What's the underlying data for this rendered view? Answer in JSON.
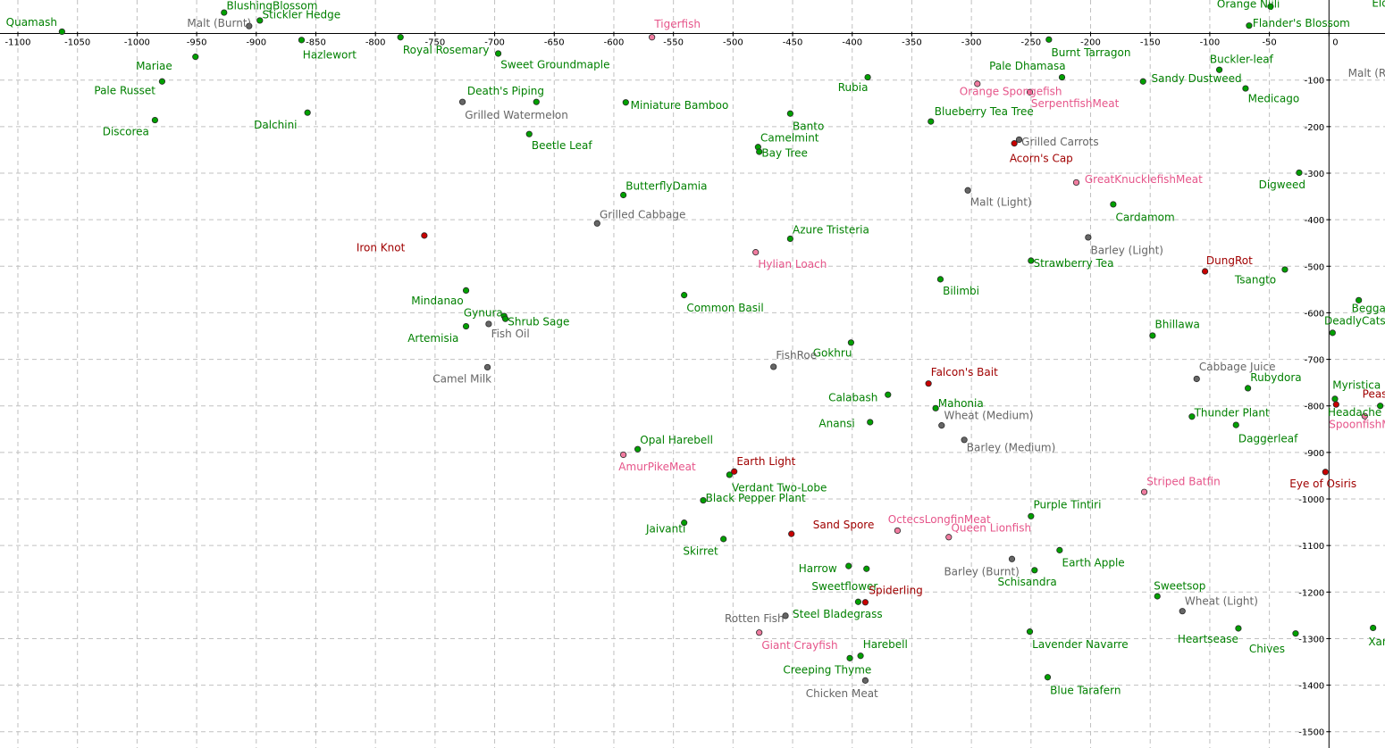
{
  "colors": {
    "plant": "#008000",
    "plant_dot": "#00a000",
    "grey": "#666666",
    "grey_dot": "#666666",
    "fish": "#e6558a",
    "fish_dot": "#f07ca0",
    "red": "#a00000",
    "red_dot": "#c80000"
  },
  "chart_data": {
    "type": "scatter",
    "title": "",
    "xlabel": "",
    "ylabel": "",
    "xlim": [
      -1115,
      47
    ],
    "ylim": [
      -1535,
      72
    ],
    "grid": true,
    "x_ticks": [
      -1100,
      -1050,
      -1000,
      -950,
      -900,
      -850,
      -800,
      -750,
      -700,
      -650,
      -600,
      -550,
      -500,
      -450,
      -400,
      -350,
      -300,
      -250,
      -200,
      -150,
      -100,
      -50,
      0
    ],
    "x_tick_labels": [
      "-1100",
      "-1050",
      "-1000",
      "-950",
      "-900",
      "-850",
      "-800",
      "-750",
      "-700",
      "-650",
      "-600",
      "-550",
      "-500",
      "-450",
      "-400",
      "-350",
      "-300",
      "-250",
      "-200",
      "-150",
      "-100",
      "-50",
      "0"
    ],
    "y_ticks": [
      -100,
      -200,
      -300,
      -400,
      -500,
      -600,
      -700,
      -800,
      -900,
      -1000,
      -1100,
      -1200,
      -1300,
      -1400,
      -1500
    ],
    "y_tick_labels": [
      "-100",
      "-200",
      "-300",
      "-400",
      "-500",
      "-600",
      "-700",
      "-800",
      "-900",
      "-1000",
      "-1100",
      "-1200",
      "-1300",
      "-1400",
      "-1500"
    ],
    "points": [
      {
        "label": "Quamash",
        "x": -1063,
        "y": 4,
        "cat": "plant",
        "lx": -1110,
        "ly": 24
      },
      {
        "label": "BlushingBlossom",
        "x": -927,
        "y": 45,
        "cat": "plant",
        "lx": -925,
        "ly": 60
      },
      {
        "label": "Stickler Hedge",
        "x": -897,
        "y": 28,
        "cat": "plant",
        "lx": -895,
        "ly": 40
      },
      {
        "label": "Malt (Burnt)",
        "x": -906,
        "y": 16,
        "cat": "grey",
        "lx": -958,
        "ly": 22
      },
      {
        "label": "Hazlewort",
        "x": -862,
        "y": -14,
        "cat": "plant",
        "lx": -861,
        "ly": -46
      },
      {
        "label": "Tigerfish",
        "x": -568,
        "y": -8,
        "cat": "fish",
        "lx": -566,
        "ly": 20
      },
      {
        "label": "Royal Rosemary",
        "x": -779,
        "y": -8,
        "cat": "plant",
        "lx": -777,
        "ly": -35
      },
      {
        "label": "Sweet Groundmaple",
        "x": -697,
        "y": -43,
        "cat": "plant",
        "lx": -695,
        "ly": -67
      },
      {
        "label": "Orange Nijli",
        "x": -49,
        "y": 58,
        "cat": "plant",
        "lx": -94,
        "ly": 63
      },
      {
        "label": "Flander's Blossom",
        "x": -67,
        "y": 17,
        "cat": "plant",
        "lx": -64,
        "ly": 22
      },
      {
        "label": "Mariae",
        "x": -951,
        "y": -50,
        "cat": "plant",
        "lx": -1001,
        "ly": -70
      },
      {
        "label": "Pale Russet",
        "x": -979,
        "y": -103,
        "cat": "plant",
        "lx": -1036,
        "ly": -123
      },
      {
        "label": "Discorea",
        "x": -985,
        "y": -186,
        "cat": "plant",
        "lx": -1029,
        "ly": -211
      },
      {
        "label": "Dalchini",
        "x": -857,
        "y": -170,
        "cat": "plant",
        "lx": -902,
        "ly": -196
      },
      {
        "label": "Death's Piping",
        "x": -665,
        "y": -147,
        "cat": "plant",
        "lx": -723,
        "ly": -124
      },
      {
        "label": "Grilled Watermelon",
        "x": -727,
        "y": -147,
        "cat": "grey",
        "lx": -725,
        "ly": -175
      },
      {
        "label": "Miniature Bamboo",
        "x": -590,
        "y": -148,
        "cat": "plant",
        "lx": -586,
        "ly": -154
      },
      {
        "label": "Beetle Leaf",
        "x": -671,
        "y": -216,
        "cat": "plant",
        "lx": -669,
        "ly": -241
      },
      {
        "label": "Banto",
        "x": -452,
        "y": -172,
        "cat": "plant",
        "lx": -450,
        "ly": -199
      },
      {
        "label": "Rubia",
        "x": -387,
        "y": -94,
        "cat": "plant",
        "lx": -412,
        "ly": -116
      },
      {
        "label": "Burnt Tarragon",
        "x": -235,
        "y": -13,
        "cat": "plant",
        "lx": -233,
        "ly": -41
      },
      {
        "label": "Pale Dhamasa",
        "x": -224,
        "y": -94,
        "cat": "plant",
        "lx": -285,
        "ly": -70
      },
      {
        "label": "Buckler-leaf",
        "x": -92,
        "y": -78,
        "cat": "plant",
        "lx": -100,
        "ly": -56
      },
      {
        "label": "Sandy Dustweed",
        "x": -156,
        "y": -103,
        "cat": "plant",
        "lx": -149,
        "ly": -97
      },
      {
        "label": "Medicago",
        "x": -70,
        "y": -118,
        "cat": "plant",
        "lx": -68,
        "ly": -140
      },
      {
        "label": "Orange Spongefish",
        "x": -295,
        "y": -108,
        "cat": "fish",
        "lx": -310,
        "ly": -125
      },
      {
        "label": "SerpentfishMeat",
        "x": -251,
        "y": -126,
        "cat": "fish",
        "lx": -250,
        "ly": -150
      },
      {
        "label": "Blueberry Tea Tree",
        "x": -334,
        "y": -189,
        "cat": "plant",
        "lx": -331,
        "ly": -168
      },
      {
        "label": "Grilled Carrots",
        "x": -260,
        "y": -228,
        "cat": "grey",
        "lx": -258,
        "ly": -233
      },
      {
        "label": "Acorn's Cap",
        "x": -264,
        "y": -236,
        "cat": "red",
        "lx": -268,
        "ly": -268
      },
      {
        "label": "Camelmint",
        "x": -479,
        "y": -244,
        "cat": "plant",
        "lx": -477,
        "ly": -224
      },
      {
        "label": "Bay Tree",
        "x": -478,
        "y": -254,
        "cat": "plant",
        "lx": -476,
        "ly": -257
      },
      {
        "label": "Digweed",
        "x": -25,
        "y": -299,
        "cat": "plant",
        "lx": -59,
        "ly": -325
      },
      {
        "label": "Malt (Light)",
        "x": -303,
        "y": -337,
        "cat": "grey",
        "lx": -301,
        "ly": -362
      },
      {
        "label": "GreatKnucklefishMeat",
        "x": -212,
        "y": -320,
        "cat": "fish",
        "lx": -205,
        "ly": -313
      },
      {
        "label": "ButterflyDamia",
        "x": -592,
        "y": -347,
        "cat": "plant",
        "lx": -590,
        "ly": -328
      },
      {
        "label": "Cardamom",
        "x": -181,
        "y": -367,
        "cat": "plant",
        "lx": -179,
        "ly": -395
      },
      {
        "label": "Grilled Cabbage",
        "x": -614,
        "y": -408,
        "cat": "grey",
        "lx": -612,
        "ly": -389
      },
      {
        "label": "Iron Knot",
        "x": -759,
        "y": -434,
        "cat": "red",
        "lx": -816,
        "ly": -460
      },
      {
        "label": "Azure Tristeria",
        "x": -452,
        "y": -441,
        "cat": "plant",
        "lx": -450,
        "ly": -422
      },
      {
        "label": "Barley (Light)",
        "x": -202,
        "y": -438,
        "cat": "grey",
        "lx": -200,
        "ly": -466
      },
      {
        "label": "Hylian Loach",
        "x": -481,
        "y": -470,
        "cat": "fish",
        "lx": -479,
        "ly": -496
      },
      {
        "label": "DungRot",
        "x": -104,
        "y": -511,
        "cat": "red",
        "lx": -103,
        "ly": -488
      },
      {
        "label": "Strawberry Tea",
        "x": -250,
        "y": -488,
        "cat": "plant",
        "lx": -248,
        "ly": -494
      },
      {
        "label": "Tsangto",
        "x": -37,
        "y": -507,
        "cat": "plant",
        "lx": -79,
        "ly": -529
      },
      {
        "label": "Bilimbi",
        "x": -326,
        "y": -528,
        "cat": "plant",
        "lx": -324,
        "ly": -553
      },
      {
        "label": "Mindanao",
        "x": -724,
        "y": -552,
        "cat": "plant",
        "lx": -770,
        "ly": -574
      },
      {
        "label": "Common Basil",
        "x": -541,
        "y": -562,
        "cat": "plant",
        "lx": -539,
        "ly": -590
      },
      {
        "label": "Gynura",
        "x": -692,
        "y": -607,
        "cat": "plant",
        "lx": -726,
        "ly": -600
      },
      {
        "label": "Shrub Sage",
        "x": -691,
        "y": -613,
        "cat": "plant",
        "lx": -689,
        "ly": -619
      },
      {
        "label": "Fish Oil",
        "x": -705,
        "y": -624,
        "cat": "grey",
        "lx": -703,
        "ly": -645
      },
      {
        "label": "Artemisia",
        "x": -724,
        "y": -629,
        "cat": "plant",
        "lx": -773,
        "ly": -655
      },
      {
        "label": "Beggar's Bush",
        "x": 25,
        "y": -573,
        "cat": "plant",
        "lx": 19,
        "ly": -591
      },
      {
        "label": "DeadlyCatsclaw",
        "x": 3,
        "y": -643,
        "cat": "plant",
        "lx": -4,
        "ly": -617
      },
      {
        "label": "Bhillawa",
        "x": -148,
        "y": -649,
        "cat": "plant",
        "lx": -146,
        "ly": -625
      },
      {
        "label": "Gokhru",
        "x": -401,
        "y": -664,
        "cat": "plant",
        "lx": -433,
        "ly": -686
      },
      {
        "label": "FishRoe",
        "x": -466,
        "y": -716,
        "cat": "grey",
        "lx": -464,
        "ly": -691
      },
      {
        "label": "Camel Milk",
        "x": -706,
        "y": -717,
        "cat": "grey",
        "lx": -752,
        "ly": -742
      },
      {
        "label": "Cabbage Juice",
        "x": -111,
        "y": -742,
        "cat": "grey",
        "lx": -109,
        "ly": -716
      },
      {
        "label": "Rubydora",
        "x": -68,
        "y": -762,
        "cat": "plant",
        "lx": -66,
        "ly": -739
      },
      {
        "label": "Falcon's Bait",
        "x": -336,
        "y": -752,
        "cat": "red",
        "lx": -334,
        "ly": -728
      },
      {
        "label": "Calabash",
        "x": -370,
        "y": -776,
        "cat": "plant",
        "lx": -420,
        "ly": -782
      },
      {
        "label": "Mahonia",
        "x": -330,
        "y": -805,
        "cat": "plant",
        "lx": -328,
        "ly": -795
      },
      {
        "label": "Myristica",
        "x": 5,
        "y": -785,
        "cat": "plant",
        "lx": 3,
        "ly": -755
      },
      {
        "label": "Peasant Foot",
        "x": 6,
        "y": -797,
        "cat": "red",
        "lx": 28,
        "ly": -775
      },
      {
        "label": "Headache Tree",
        "x": 43,
        "y": -800,
        "cat": "plant",
        "lx": -1,
        "ly": -814
      },
      {
        "label": "SpoonfishMeat",
        "x": 30,
        "y": -822,
        "cat": "fish",
        "lx": 0,
        "ly": -840
      },
      {
        "label": "Wheat (Medium)",
        "x": -325,
        "y": -842,
        "cat": "grey",
        "lx": -323,
        "ly": -821
      },
      {
        "label": "Thunder Plant",
        "x": -115,
        "y": -823,
        "cat": "plant",
        "lx": -113,
        "ly": -815
      },
      {
        "label": "Anansi",
        "x": -385,
        "y": -835,
        "cat": "plant",
        "lx": -428,
        "ly": -838
      },
      {
        "label": "Daggerleaf",
        "x": -78,
        "y": -841,
        "cat": "plant",
        "lx": -76,
        "ly": -871
      },
      {
        "label": "Barley (Medium)",
        "x": -306,
        "y": -873,
        "cat": "grey",
        "lx": -304,
        "ly": -890
      },
      {
        "label": "Opal Harebell",
        "x": -580,
        "y": -893,
        "cat": "plant",
        "lx": -578,
        "ly": -873
      },
      {
        "label": "AmurPikeMeat",
        "x": -592,
        "y": -905,
        "cat": "fish",
        "lx": -596,
        "ly": -931
      },
      {
        "label": "Eye of Osiris",
        "x": -3,
        "y": -942,
        "cat": "red",
        "lx": -33,
        "ly": -967
      },
      {
        "label": "Earth Light",
        "x": -499,
        "y": -941,
        "cat": "red",
        "lx": -497,
        "ly": -919
      },
      {
        "label": "Verdant Two-Lobe",
        "x": -503,
        "y": -948,
        "cat": "plant",
        "lx": -501,
        "ly": -976
      },
      {
        "label": "Black Pepper Plant",
        "x": -525,
        "y": -1003,
        "cat": "plant",
        "lx": -523,
        "ly": -998
      },
      {
        "label": "Striped Batfin",
        "x": -155,
        "y": -985,
        "cat": "fish",
        "lx": -153,
        "ly": -963
      },
      {
        "label": "Purple Tintiri",
        "x": -250,
        "y": -1037,
        "cat": "plant",
        "lx": -248,
        "ly": -1012
      },
      {
        "label": "Jaivanti",
        "x": -541,
        "y": -1051,
        "cat": "plant",
        "lx": -573,
        "ly": -1064
      },
      {
        "label": "OctecsLongfinMeat",
        "x": -362,
        "y": -1068,
        "cat": "fish",
        "lx": -370,
        "ly": -1044
      },
      {
        "label": "Sand Spore",
        "x": -451,
        "y": -1075,
        "cat": "red",
        "lx": -433,
        "ly": -1056
      },
      {
        "label": "Queen Lionfish",
        "x": -319,
        "y": -1082,
        "cat": "fish",
        "lx": -317,
        "ly": -1062
      },
      {
        "label": "Skirret",
        "x": -508,
        "y": -1086,
        "cat": "plant",
        "lx": -542,
        "ly": -1112
      },
      {
        "label": "Earth Apple",
        "x": -226,
        "y": -1110,
        "cat": "plant",
        "lx": -224,
        "ly": -1137
      },
      {
        "label": "Barley (Burnt)",
        "x": -266,
        "y": -1129,
        "cat": "grey",
        "lx": -323,
        "ly": -1156
      },
      {
        "label": "Harrow",
        "x": -403,
        "y": -1144,
        "cat": "plant",
        "lx": -445,
        "ly": -1150
      },
      {
        "label": "Sweetflower",
        "x": -388,
        "y": -1150,
        "cat": "plant",
        "lx": -434,
        "ly": -1188
      },
      {
        "label": "Schisandra",
        "x": -247,
        "y": -1153,
        "cat": "plant",
        "lx": -278,
        "ly": -1178
      },
      {
        "label": "Spiderling",
        "x": -389,
        "y": -1222,
        "cat": "red",
        "lx": -386,
        "ly": -1197
      },
      {
        "label": "Steel Bladegrass",
        "x": -395,
        "y": -1221,
        "cat": "plant",
        "lx": -450,
        "ly": -1247
      },
      {
        "label": "Sweetsop",
        "x": -144,
        "y": -1209,
        "cat": "plant",
        "lx": -147,
        "ly": -1187
      },
      {
        "label": "Wheat (Light)",
        "x": -123,
        "y": -1241,
        "cat": "grey",
        "lx": -121,
        "ly": -1220
      },
      {
        "label": "Rotten Fish",
        "x": -456,
        "y": -1251,
        "cat": "grey",
        "lx": -507,
        "ly": -1257
      },
      {
        "label": "Giant Crayfish",
        "x": -478,
        "y": -1287,
        "cat": "fish",
        "lx": -476,
        "ly": -1314
      },
      {
        "label": "Heartsease",
        "x": -76,
        "y": -1278,
        "cat": "plant",
        "lx": -127,
        "ly": -1301
      },
      {
        "label": "Chives",
        "x": -28,
        "y": -1289,
        "cat": "plant",
        "lx": -67,
        "ly": -1322
      },
      {
        "label": "Xanthium",
        "x": 37,
        "y": -1277,
        "cat": "plant",
        "lx": 33,
        "ly": -1307
      },
      {
        "label": "Lavender Navarre",
        "x": -251,
        "y": -1285,
        "cat": "plant",
        "lx": -249,
        "ly": -1313
      },
      {
        "label": "Harebell",
        "x": -393,
        "y": -1337,
        "cat": "plant",
        "lx": -391,
        "ly": -1313
      },
      {
        "label": "Creeping Thyme",
        "x": -402,
        "y": -1342,
        "cat": "plant",
        "lx": -458,
        "ly": -1367
      },
      {
        "label": "Chicken Meat",
        "x": -389,
        "y": -1390,
        "cat": "grey",
        "lx": -439,
        "ly": -1418
      },
      {
        "label": "Blue Tarafern",
        "x": -236,
        "y": -1383,
        "cat": "plant",
        "lx": -234,
        "ly": -1411
      },
      {
        "label": "Malt (Raw)",
        "x": 50,
        "y": -85,
        "cat": "grey",
        "lx": 16,
        "ly": -85,
        "nodot": true
      },
      {
        "label": "Elderberry",
        "x": 50,
        "y": 60,
        "cat": "plant",
        "lx": 36,
        "ly": 65,
        "nodot": true
      }
    ]
  }
}
